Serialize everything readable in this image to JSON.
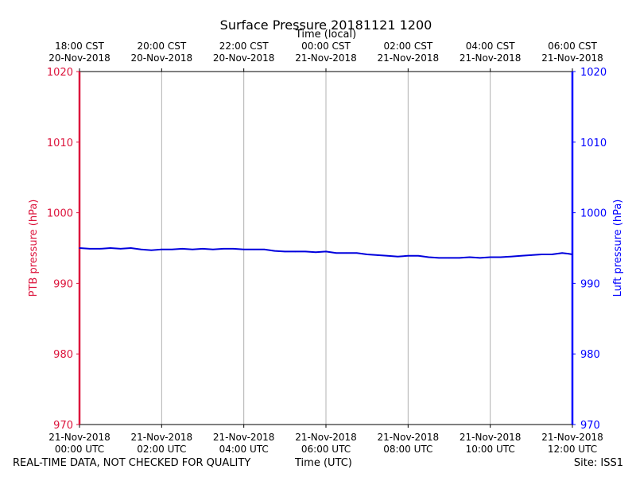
{
  "chart_data": {
    "type": "line",
    "title": "Surface Pressure 20181121 1200",
    "top_xlabel": "Time (local)",
    "xlabel": "Time (UTC)",
    "ylabel_left": "PTB pressure (hPa)",
    "ylabel_right": "Luft pressure (hPa)",
    "ylim": [
      970,
      1020
    ],
    "yticks": [
      "970",
      "980",
      "990",
      "1000",
      "1010",
      "1020"
    ],
    "xlim_hours_utc": [
      0,
      12
    ],
    "bottom_ticks": [
      {
        "date": "21-Nov-2018",
        "time": "00:00 UTC"
      },
      {
        "date": "21-Nov-2018",
        "time": "02:00 UTC"
      },
      {
        "date": "21-Nov-2018",
        "time": "04:00 UTC"
      },
      {
        "date": "21-Nov-2018",
        "time": "06:00 UTC"
      },
      {
        "date": "21-Nov-2018",
        "time": "08:00 UTC"
      },
      {
        "date": "21-Nov-2018",
        "time": "10:00 UTC"
      },
      {
        "date": "21-Nov-2018",
        "time": "12:00 UTC"
      }
    ],
    "top_ticks": [
      {
        "time": "18:00 CST",
        "date": "20-Nov-2018"
      },
      {
        "time": "20:00 CST",
        "date": "20-Nov-2018"
      },
      {
        "time": "22:00 CST",
        "date": "20-Nov-2018"
      },
      {
        "time": "00:00 CST",
        "date": "21-Nov-2018"
      },
      {
        "time": "02:00 CST",
        "date": "21-Nov-2018"
      },
      {
        "time": "04:00 CST",
        "date": "21-Nov-2018"
      },
      {
        "time": "06:00 CST",
        "date": "21-Nov-2018"
      }
    ],
    "grid": "vertical",
    "series": [
      {
        "color": "#0000dd",
        "x": [
          0,
          0.25,
          0.5,
          0.75,
          1.0,
          1.25,
          1.5,
          1.75,
          2.0,
          2.25,
          2.5,
          2.75,
          3.0,
          3.25,
          3.5,
          3.75,
          4.0,
          4.25,
          4.5,
          4.75,
          5.0,
          5.25,
          5.5,
          5.75,
          6.0,
          6.25,
          6.5,
          6.75,
          7.0,
          7.25,
          7.5,
          7.75,
          8.0,
          8.25,
          8.5,
          8.75,
          9.0,
          9.25,
          9.5,
          9.75,
          10.0,
          10.25,
          10.5,
          10.75,
          11.0,
          11.25,
          11.5,
          11.75,
          11.9,
          12.0
        ],
        "values": [
          995.0,
          994.9,
          994.9,
          995.0,
          994.9,
          995.0,
          994.8,
          994.7,
          994.8,
          994.8,
          994.9,
          994.8,
          994.9,
          994.8,
          994.9,
          994.9,
          994.8,
          994.8,
          994.8,
          994.6,
          994.5,
          994.5,
          994.5,
          994.4,
          994.5,
          994.3,
          994.3,
          994.3,
          994.1,
          994.0,
          993.9,
          993.8,
          993.9,
          993.9,
          993.7,
          993.6,
          993.6,
          993.6,
          993.7,
          993.6,
          993.7,
          993.7,
          993.8,
          993.9,
          994.0,
          994.1,
          994.1,
          994.3,
          994.2,
          994.1
        ]
      }
    ],
    "left_axis_color": "#dc143c",
    "right_axis_color": "#0000ff"
  },
  "footer": {
    "left": "REAL-TIME DATA, NOT CHECKED FOR QUALITY",
    "center": "Time (UTC)",
    "right": "Site: ISS1"
  }
}
